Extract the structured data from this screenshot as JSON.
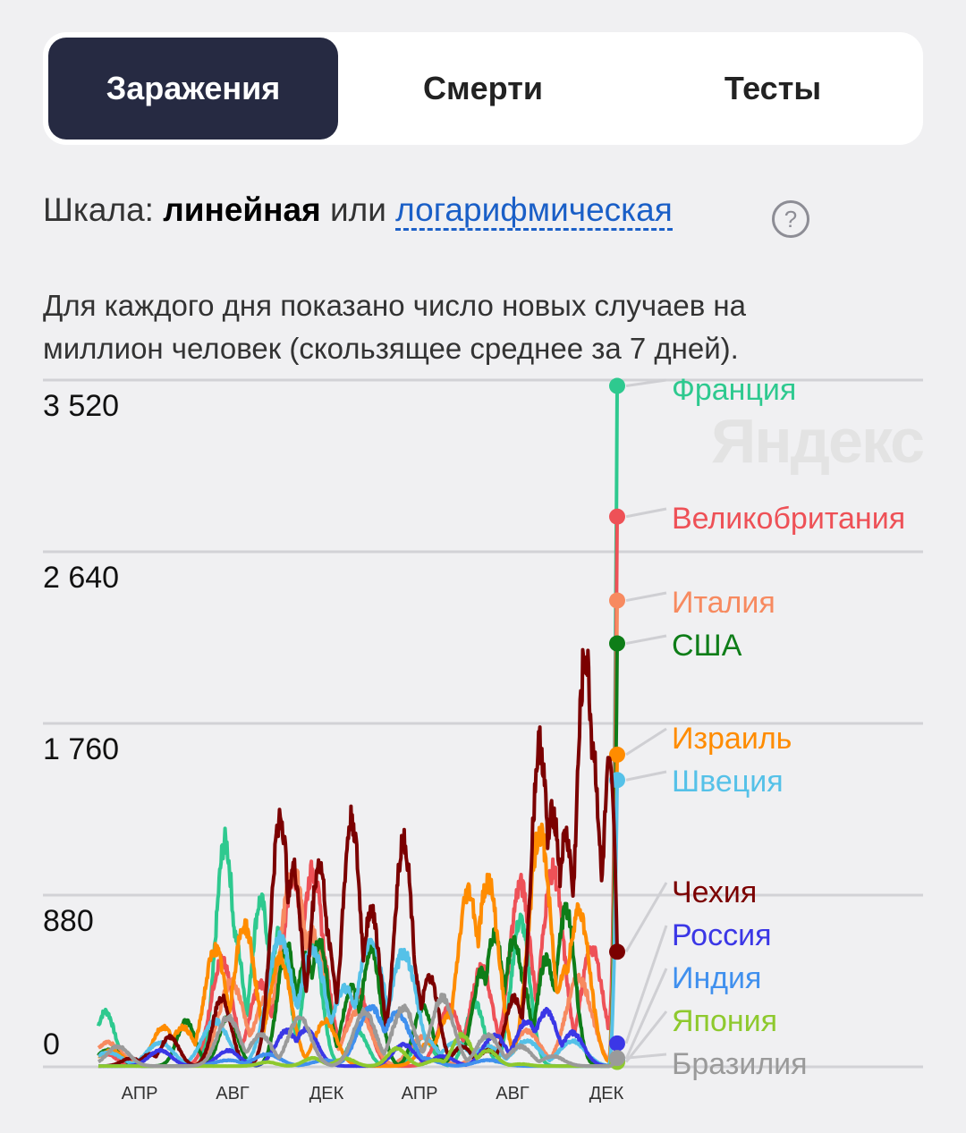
{
  "tabs": {
    "infections": "Заражения",
    "deaths": "Смерти",
    "tests": "Тесты"
  },
  "scale": {
    "prefix": "Шкала:",
    "linear": "линейная",
    "or": "или",
    "log": "логарифмическая",
    "help": "?"
  },
  "description": "Для каждого дня показано число новых случаев на миллион человек (скользящее среднее за 7 дней).",
  "watermark": "Яндекс",
  "chart_data": {
    "type": "line",
    "x_ticks": [
      "АПР",
      "АВГ",
      "ДЕК",
      "АПР",
      "АВГ",
      "ДЕК"
    ],
    "y_ticks": [
      "0",
      "880",
      "1 760",
      "2 640",
      "3 520"
    ],
    "ylim": [
      0,
      3520
    ],
    "series": [
      {
        "name": "Франция",
        "color": "#2ec98f",
        "end": 3490,
        "peaks": [
          [
            11,
            280
          ],
          [
            195,
            1150
          ],
          [
            207,
            700
          ],
          [
            210,
            650
          ],
          [
            250,
            850
          ],
          [
            280,
            700
          ],
          [
            330,
            650
          ],
          [
            400,
            180
          ],
          [
            500,
            150
          ],
          [
            580,
            320
          ],
          [
            650,
            750
          ]
        ]
      },
      {
        "name": "Великобритания",
        "color": "#ee5157",
        "end": 2820,
        "peaks": [
          [
            11,
            60
          ],
          [
            190,
            540
          ],
          [
            250,
            420
          ],
          [
            290,
            650
          ],
          [
            300,
            970
          ],
          [
            330,
            1000
          ],
          [
            340,
            620
          ],
          [
            400,
            380
          ],
          [
            540,
            300
          ],
          [
            590,
            500
          ],
          [
            650,
            930
          ],
          [
            700,
            1000
          ],
          [
            760,
            600
          ]
        ]
      },
      {
        "name": "Италия",
        "color": "#f78a60",
        "end": 2390,
        "peaks": [
          [
            12,
            90
          ],
          [
            15,
            120
          ],
          [
            205,
            430
          ],
          [
            260,
            350
          ],
          [
            300,
            1000
          ],
          [
            330,
            680
          ],
          [
            400,
            280
          ],
          [
            500,
            150
          ],
          [
            600,
            100
          ],
          [
            660,
            180
          ],
          [
            740,
            450
          ]
        ]
      },
      {
        "name": "США",
        "color": "#0e7d18",
        "end": 2170,
        "peaks": [
          [
            12,
            80
          ],
          [
            20,
            90
          ],
          [
            135,
            230
          ],
          [
            200,
            250
          ],
          [
            290,
            620
          ],
          [
            320,
            570
          ],
          [
            340,
            640
          ],
          [
            390,
            400
          ],
          [
            420,
            600
          ],
          [
            500,
            300
          ],
          [
            560,
            100
          ],
          [
            590,
            480
          ],
          [
            610,
            680
          ],
          [
            640,
            650
          ],
          [
            650,
            470
          ],
          [
            690,
            550
          ],
          [
            720,
            800
          ]
        ]
      },
      {
        "name": "Израиль",
        "color": "#ff8c00",
        "end": 1600,
        "peaks": [
          [
            10,
            60
          ],
          [
            20,
            80
          ],
          [
            100,
            200
          ],
          [
            130,
            200
          ],
          [
            180,
            600
          ],
          [
            225,
            720
          ],
          [
            280,
            550
          ],
          [
            350,
            230
          ],
          [
            510,
            120
          ],
          [
            540,
            260
          ],
          [
            570,
            900
          ],
          [
            600,
            950
          ],
          [
            680,
            1200
          ],
          [
            720,
            500
          ],
          [
            740,
            800
          ]
        ]
      },
      {
        "name": "Швеция",
        "color": "#55c1e8",
        "end": 1470,
        "peaks": [
          [
            15,
            70
          ],
          [
            95,
            120
          ],
          [
            180,
            230
          ],
          [
            280,
            650
          ],
          [
            330,
            600
          ],
          [
            350,
            230
          ],
          [
            380,
            400
          ],
          [
            420,
            650
          ],
          [
            470,
            580
          ],
          [
            500,
            150
          ],
          [
            550,
            120
          ],
          [
            600,
            100
          ],
          [
            660,
            130
          ],
          [
            730,
            130
          ]
        ]
      },
      {
        "name": "Чехия",
        "color": "#7b0000",
        "end": 590,
        "peaks": [
          [
            50,
            40
          ],
          [
            80,
            60
          ],
          [
            110,
            150
          ],
          [
            190,
            350
          ],
          [
            280,
            1270
          ],
          [
            300,
            1010
          ],
          [
            340,
            1030
          ],
          [
            350,
            690
          ],
          [
            390,
            1260
          ],
          [
            420,
            800
          ],
          [
            470,
            1160
          ],
          [
            480,
            600
          ],
          [
            510,
            450
          ],
          [
            560,
            100
          ],
          [
            600,
            80
          ],
          [
            640,
            350
          ],
          [
            680,
            1650
          ],
          [
            700,
            1300
          ],
          [
            720,
            1180
          ],
          [
            730,
            500
          ],
          [
            750,
            2100
          ],
          [
            790,
            1600
          ],
          [
            760,
            1650
          ]
        ]
      },
      {
        "name": "Россия",
        "color": "#3b37e6",
        "end": 120,
        "peaks": [
          [
            95,
            80
          ],
          [
            200,
            80
          ],
          [
            290,
            180
          ],
          [
            320,
            190
          ],
          [
            470,
            110
          ],
          [
            530,
            50
          ],
          [
            610,
            160
          ],
          [
            660,
            230
          ],
          [
            690,
            280
          ],
          [
            730,
            170
          ]
        ]
      },
      {
        "name": "Индия",
        "color": "#4090ee",
        "end": 40,
        "peaks": [
          [
            200,
            30
          ],
          [
            260,
            60
          ],
          [
            350,
            30
          ],
          [
            420,
            300
          ],
          [
            460,
            270
          ],
          [
            500,
            40
          ],
          [
            600,
            30
          ]
        ]
      },
      {
        "name": "Япония",
        "color": "#8ec92e",
        "end": 25,
        "peaks": [
          [
            260,
            20
          ],
          [
            330,
            40
          ],
          [
            380,
            40
          ],
          [
            460,
            90
          ],
          [
            520,
            30
          ],
          [
            560,
            160
          ],
          [
            600,
            80
          ],
          [
            650,
            10
          ]
        ]
      },
      {
        "name": "Бразилия",
        "color": "#9a9a9a",
        "end": 45,
        "peaks": [
          [
            30,
            100
          ],
          [
            200,
            250
          ],
          [
            250,
            160
          ],
          [
            310,
            250
          ],
          [
            410,
            280
          ],
          [
            470,
            300
          ],
          [
            530,
            350
          ],
          [
            600,
            160
          ],
          [
            650,
            100
          ],
          [
            700,
            50
          ]
        ]
      }
    ]
  }
}
